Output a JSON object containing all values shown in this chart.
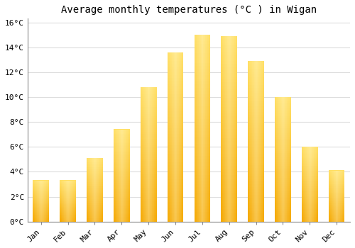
{
  "title": "Average monthly temperatures (°C ) in Wigan",
  "months": [
    "Jan",
    "Feb",
    "Mar",
    "Apr",
    "May",
    "Jun",
    "Jul",
    "Aug",
    "Sep",
    "Oct",
    "Nov",
    "Dec"
  ],
  "temperatures": [
    3.3,
    3.3,
    5.1,
    7.4,
    10.8,
    13.6,
    15.0,
    14.9,
    12.9,
    10.0,
    6.0,
    4.1
  ],
  "bar_color_center": "#FFE066",
  "bar_color_edge": "#F5A800",
  "background_color": "#FFFFFF",
  "plot_bg_color": "#FFFFFF",
  "grid_color": "#DDDDDD",
  "title_fontsize": 10,
  "tick_fontsize": 8,
  "ytick_step": 2,
  "ymax": 16,
  "ymin": 0,
  "bar_width": 0.6
}
